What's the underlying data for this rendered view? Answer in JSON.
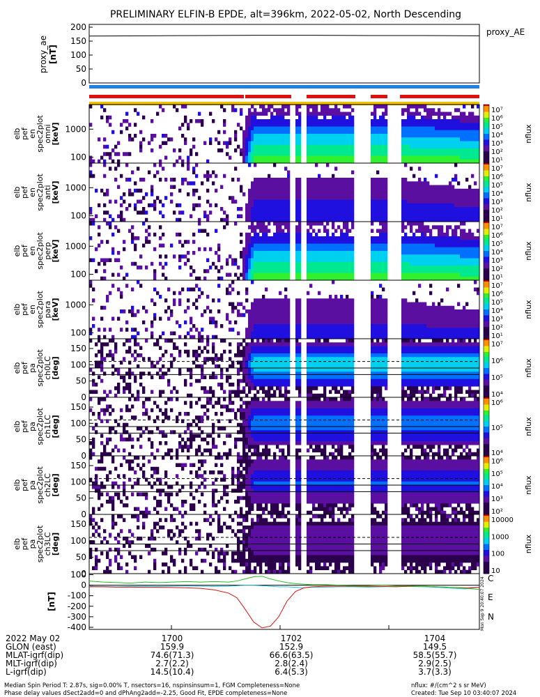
{
  "title": "PRELIMINARY ELFIN-B EPDE, alt=396km, 2022-05-02, North Descending",
  "colors": {
    "blue_bar": "#1f7fe6",
    "red_bar": "#e01010",
    "yellow_bar": "#f0c000",
    "ae_line": "#000000",
    "mag_n": "#22c022",
    "mag_e": "#e01010",
    "mag_c": "#22c0e0"
  },
  "chart_data": [
    {
      "type": "line",
      "name_label": "proxy_AE",
      "ylabel": [
        "proxy_ae",
        "[nT]"
      ],
      "ylim": [
        0,
        210
      ],
      "yticks": [
        "200",
        "150",
        "100",
        "50",
        "0"
      ],
      "ytick_values": [
        200,
        150,
        100,
        50,
        0
      ],
      "x_minutes": [
        0,
        2,
        4,
        6,
        8,
        10,
        12,
        14
      ],
      "values": [
        168,
        169,
        170,
        171,
        171,
        170,
        170,
        169
      ]
    },
    {
      "type": "bar",
      "name": "status_bars",
      "segments": {
        "blue": [
          [
            0,
            14
          ]
        ],
        "red": [
          [
            0,
            5.55
          ],
          [
            5.6,
            7.25
          ],
          [
            7.8,
            9.55
          ],
          [
            10.1,
            10.7
          ],
          [
            11.15,
            14
          ]
        ],
        "yellow": [
          [
            0,
            14
          ]
        ]
      }
    },
    {
      "type": "heatmap",
      "ylabel": [
        "elb",
        "pef",
        "en",
        "spec2plot",
        "omni",
        "[keV]"
      ],
      "yscale": "log",
      "yticks": [
        "1000",
        "100"
      ],
      "colorbar_ticks": [
        "10⁷",
        "10⁶",
        "10⁵",
        "10⁴",
        "10³",
        "10²",
        "10¹"
      ],
      "colorbar_label": "nflux"
    },
    {
      "type": "heatmap",
      "ylabel": [
        "elb",
        "pef",
        "en",
        "spec2plot",
        "anti",
        "[keV]"
      ],
      "yscale": "log",
      "yticks": [
        "1000",
        "100"
      ],
      "colorbar_ticks": [
        "10⁷",
        "10⁶",
        "10⁵",
        "10⁴",
        "10³",
        "10²",
        "10¹"
      ],
      "colorbar_label": "nflux"
    },
    {
      "type": "heatmap",
      "ylabel": [
        "elb",
        "pef",
        "en",
        "spec2plot",
        "perp",
        "[keV]"
      ],
      "yscale": "log",
      "yticks": [
        "1000",
        "100"
      ],
      "colorbar_ticks": [
        "10⁷",
        "10⁶",
        "10⁵",
        "10⁴",
        "10³",
        "10²",
        "10¹"
      ],
      "colorbar_label": "nflux"
    },
    {
      "type": "heatmap",
      "ylabel": [
        "elb",
        "pef",
        "en",
        "spec2plot",
        "para",
        "[keV]"
      ],
      "yscale": "log",
      "yticks": [
        "1000",
        "100"
      ],
      "colorbar_ticks": [
        "10⁷",
        "10⁶",
        "10⁵",
        "10⁴",
        "10³",
        "10²",
        "10¹"
      ],
      "colorbar_label": "nflux"
    },
    {
      "type": "heatmap",
      "ylabel": [
        "elb",
        "pef",
        "pa",
        "spec2plot",
        "ch0LC",
        "[deg]"
      ],
      "ylim": [
        0,
        180
      ],
      "yticks": [
        "150",
        "100",
        "50",
        "0"
      ],
      "ytick_values": [
        150,
        100,
        50,
        0
      ],
      "colorbar_ticks": [
        "10⁷",
        "10⁶",
        "10⁵",
        "10⁴"
      ],
      "colorbar_label": "nflux"
    },
    {
      "type": "heatmap",
      "ylabel": [
        "elb",
        "pef",
        "pa",
        "spec2plot",
        "ch1LC",
        "[deg]"
      ],
      "ylim": [
        0,
        180
      ],
      "yticks": [
        "150",
        "100",
        "50",
        "0"
      ],
      "ytick_values": [
        150,
        100,
        50,
        0
      ],
      "colorbar_ticks": [
        "10⁶",
        "10⁵",
        "10⁴"
      ],
      "colorbar_label": "nflux"
    },
    {
      "type": "heatmap",
      "ylabel": [
        "elb",
        "pef",
        "pa",
        "spec2plot",
        "ch2LC",
        "[deg]"
      ],
      "ylim": [
        0,
        180
      ],
      "yticks": [
        "150",
        "100",
        "50",
        "0"
      ],
      "ytick_values": [
        150,
        100,
        50,
        0
      ],
      "colorbar_ticks": [
        "10⁶",
        "10⁵",
        "10⁴",
        "10³",
        "10²"
      ],
      "colorbar_label": "nflux"
    },
    {
      "type": "heatmap",
      "ylabel": [
        "elb",
        "pef",
        "pa",
        "spec2plot",
        "ch3LC",
        "[deg]"
      ],
      "ylim": [
        0,
        180
      ],
      "yticks": [
        "150",
        "100",
        "50",
        "0"
      ],
      "ytick_values": [
        150,
        100,
        50,
        0
      ],
      "colorbar_ticks": [
        "10000",
        "1000",
        "100",
        "10"
      ],
      "colorbar_label": "nflux"
    },
    {
      "type": "line",
      "ylabel": [
        "[nT]"
      ],
      "ylim": [
        -420,
        110
      ],
      "yticks": [
        "100",
        "0",
        "-100",
        "-200",
        "-300",
        "-400"
      ],
      "ytick_values": [
        100,
        0,
        -100,
        -200,
        -300,
        -400
      ],
      "legend": [
        "C",
        "E",
        "N"
      ],
      "x_minutes": [
        0,
        0.5,
        1,
        1.5,
        2,
        2.5,
        3,
        3.5,
        4,
        4.5,
        5,
        5.3,
        5.6,
        5.9,
        6.2,
        6.5,
        6.8,
        7.1,
        7.4,
        7.7,
        8,
        8.5,
        9,
        9.5,
        10,
        10.5,
        11,
        11.5,
        12,
        12.5,
        13,
        13.5,
        14
      ],
      "series": [
        {
          "name": "C",
          "values": [
            -10,
            -12,
            -15,
            -12,
            -10,
            -12,
            -10,
            -8,
            -10,
            -12,
            -10,
            -5,
            0,
            0,
            -5,
            -10,
            -15,
            -15,
            -20,
            -25,
            -20,
            -18,
            -15,
            -15,
            -18,
            -15,
            -12,
            -12,
            -15,
            -20,
            -30,
            -35,
            -20
          ]
        },
        {
          "name": "E",
          "values": [
            -15,
            -15,
            -18,
            -18,
            -20,
            -20,
            -22,
            -25,
            -30,
            -45,
            -75,
            -120,
            -230,
            -350,
            -405,
            -390,
            -300,
            -150,
            -60,
            -25,
            -15,
            -10,
            -8,
            -10,
            -12,
            -12,
            -15,
            -10,
            -10,
            -15,
            -20,
            -25,
            -20
          ]
        },
        {
          "name": "N",
          "values": [
            40,
            30,
            25,
            20,
            30,
            25,
            30,
            35,
            30,
            35,
            30,
            40,
            60,
            80,
            85,
            60,
            40,
            25,
            15,
            10,
            5,
            5,
            0,
            -5,
            -5,
            0,
            -5,
            -5,
            -10,
            -15,
            -20,
            -30,
            -40
          ]
        }
      ]
    }
  ],
  "time_axis": {
    "rows": [
      {
        "label": "2022 May 02",
        "values": [
          "1700",
          "1702",
          "1704"
        ]
      },
      {
        "label": "GLON (east)",
        "values": [
          "159.9",
          "152.9",
          "149.5"
        ]
      },
      {
        "label": "MLAT-igrf(dip)",
        "values": [
          "74.6(71.3)",
          "66.6(63.5)",
          "58.5(55.7)"
        ]
      },
      {
        "label": "MLT-igrf(dip)",
        "values": [
          "2.7(2.2)",
          "2.8(2.4)",
          "2.9(2.5)"
        ]
      },
      {
        "label": "L-igrf(dip)",
        "values": [
          "14.5(10.4)",
          "6.4(5.3)",
          "3.7(3.3)"
        ]
      }
    ],
    "tick_minutes": [
      2.95,
      6.85,
      10.75
    ]
  },
  "footer": {
    "line1": "Median Spin Period T: 2.87s, sig=0.00% T, nsectors=16, nspinsinsum=1, FGM Completeness=None",
    "line2": "Phase delay values dSect2add=0 and dPhAng2add=-2.25, Good Fit, EPDE completeness=None",
    "right1": "nflux: #/(cm^2 s sr MeV)",
    "right2": "Created: Tue Sep 10 03:40:07 2024",
    "side_stamp": "Mon Sep  9 20:40:07 2024"
  }
}
